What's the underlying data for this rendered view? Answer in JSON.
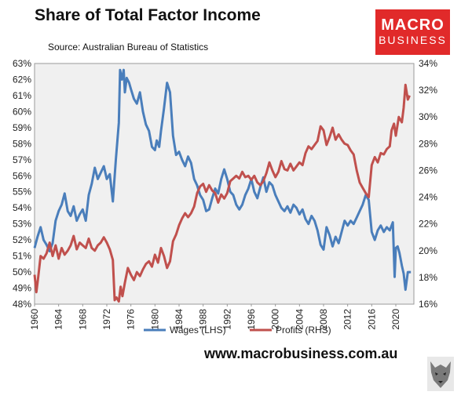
{
  "header": {
    "title": "Share of Total Factor Income",
    "source": "Source: Australian Bureau of Statistics"
  },
  "brand": {
    "logo_line1": "MACRO",
    "logo_line2": "BUSINESS",
    "url": "www.macrobusiness.com.au",
    "accent_color": "#e12a2a"
  },
  "chart_data": {
    "type": "line",
    "grid": false,
    "plot_background": "#f0f0f0",
    "x_range": [
      1960,
      2023
    ],
    "x_ticks": [
      "1960",
      "1964",
      "1968",
      "1972",
      "1976",
      "1980",
      "1984",
      "1988",
      "1992",
      "1996",
      "2000",
      "2004",
      "2008",
      "2012",
      "2016",
      "2020"
    ],
    "y_left": {
      "range": [
        48,
        63
      ],
      "ticks": [
        "48%",
        "49%",
        "50%",
        "51%",
        "52%",
        "53%",
        "54%",
        "55%",
        "56%",
        "57%",
        "58%",
        "59%",
        "60%",
        "61%",
        "62%",
        "63%"
      ]
    },
    "y_right": {
      "range": [
        16,
        34
      ],
      "ticks": [
        "16%",
        "18%",
        "20%",
        "22%",
        "24%",
        "26%",
        "28%",
        "30%",
        "32%",
        "34%"
      ]
    },
    "legend_position": "bottom",
    "series": [
      {
        "name": "Wages (LHS)",
        "axis": "left",
        "color": "#4a7ebb",
        "points": [
          [
            1960.0,
            51.5
          ],
          [
            1960.5,
            52.2
          ],
          [
            1961.0,
            52.8
          ],
          [
            1961.5,
            52.0
          ],
          [
            1962.0,
            51.7
          ],
          [
            1962.5,
            51.3
          ],
          [
            1963.0,
            51.8
          ],
          [
            1963.5,
            53.2
          ],
          [
            1964.0,
            53.8
          ],
          [
            1964.5,
            54.2
          ],
          [
            1965.0,
            54.9
          ],
          [
            1965.5,
            53.8
          ],
          [
            1966.0,
            53.5
          ],
          [
            1966.5,
            54.1
          ],
          [
            1967.0,
            53.2
          ],
          [
            1967.5,
            53.6
          ],
          [
            1968.0,
            53.9
          ],
          [
            1968.5,
            53.2
          ],
          [
            1969.0,
            54.8
          ],
          [
            1969.5,
            55.5
          ],
          [
            1970.0,
            56.5
          ],
          [
            1970.5,
            55.8
          ],
          [
            1971.0,
            56.2
          ],
          [
            1971.5,
            56.6
          ],
          [
            1972.0,
            55.8
          ],
          [
            1972.5,
            56.1
          ],
          [
            1973.0,
            54.4
          ],
          [
            1973.5,
            57.0
          ],
          [
            1974.0,
            59.3
          ],
          [
            1974.2,
            62.6
          ],
          [
            1974.5,
            62.0
          ],
          [
            1974.8,
            62.6
          ],
          [
            1975.0,
            61.2
          ],
          [
            1975.3,
            62.1
          ],
          [
            1975.7,
            61.8
          ],
          [
            1976.0,
            61.4
          ],
          [
            1976.5,
            60.8
          ],
          [
            1977.0,
            60.5
          ],
          [
            1977.5,
            61.2
          ],
          [
            1978.0,
            60.0
          ],
          [
            1978.5,
            59.2
          ],
          [
            1979.0,
            58.8
          ],
          [
            1979.5,
            57.8
          ],
          [
            1980.0,
            57.6
          ],
          [
            1980.3,
            58.2
          ],
          [
            1980.7,
            57.8
          ],
          [
            1981.0,
            58.8
          ],
          [
            1981.5,
            60.2
          ],
          [
            1982.0,
            61.8
          ],
          [
            1982.5,
            61.2
          ],
          [
            1983.0,
            58.5
          ],
          [
            1983.5,
            57.3
          ],
          [
            1984.0,
            57.5
          ],
          [
            1984.5,
            57.0
          ],
          [
            1985.0,
            56.6
          ],
          [
            1985.5,
            57.2
          ],
          [
            1986.0,
            56.8
          ],
          [
            1986.5,
            55.8
          ],
          [
            1987.0,
            55.4
          ],
          [
            1987.5,
            54.8
          ],
          [
            1988.0,
            54.5
          ],
          [
            1988.5,
            53.8
          ],
          [
            1989.0,
            53.9
          ],
          [
            1989.5,
            54.6
          ],
          [
            1990.0,
            55.2
          ],
          [
            1990.5,
            54.9
          ],
          [
            1991.0,
            55.8
          ],
          [
            1991.5,
            56.4
          ],
          [
            1992.0,
            55.8
          ],
          [
            1992.5,
            55.0
          ],
          [
            1993.0,
            54.8
          ],
          [
            1993.5,
            54.2
          ],
          [
            1994.0,
            53.9
          ],
          [
            1994.5,
            54.2
          ],
          [
            1995.0,
            54.8
          ],
          [
            1995.5,
            55.2
          ],
          [
            1996.0,
            55.8
          ],
          [
            1996.5,
            55.0
          ],
          [
            1997.0,
            54.6
          ],
          [
            1997.5,
            55.3
          ],
          [
            1998.0,
            55.9
          ],
          [
            1998.5,
            55.0
          ],
          [
            1999.0,
            55.6
          ],
          [
            1999.5,
            55.4
          ],
          [
            2000.0,
            54.8
          ],
          [
            2000.5,
            54.4
          ],
          [
            2001.0,
            54.0
          ],
          [
            2001.5,
            53.8
          ],
          [
            2002.0,
            54.1
          ],
          [
            2002.5,
            53.7
          ],
          [
            2003.0,
            54.2
          ],
          [
            2003.5,
            54.0
          ],
          [
            2004.0,
            53.6
          ],
          [
            2004.5,
            53.9
          ],
          [
            2005.0,
            53.3
          ],
          [
            2005.5,
            53.0
          ],
          [
            2006.0,
            53.5
          ],
          [
            2006.5,
            53.2
          ],
          [
            2007.0,
            52.6
          ],
          [
            2007.5,
            51.7
          ],
          [
            2008.0,
            51.4
          ],
          [
            2008.5,
            52.8
          ],
          [
            2009.0,
            52.3
          ],
          [
            2009.5,
            51.6
          ],
          [
            2010.0,
            52.2
          ],
          [
            2010.5,
            51.8
          ],
          [
            2011.0,
            52.5
          ],
          [
            2011.5,
            53.2
          ],
          [
            2012.0,
            52.9
          ],
          [
            2012.5,
            53.2
          ],
          [
            2013.0,
            53.0
          ],
          [
            2013.5,
            53.4
          ],
          [
            2014.0,
            53.8
          ],
          [
            2014.5,
            54.2
          ],
          [
            2015.0,
            54.8
          ],
          [
            2015.5,
            54.5
          ],
          [
            2016.0,
            52.5
          ],
          [
            2016.5,
            52.0
          ],
          [
            2017.0,
            52.6
          ],
          [
            2017.5,
            52.9
          ],
          [
            2018.0,
            52.5
          ],
          [
            2018.5,
            52.8
          ],
          [
            2019.0,
            52.6
          ],
          [
            2019.5,
            53.1
          ],
          [
            2019.8,
            49.7
          ],
          [
            2020.0,
            51.5
          ],
          [
            2020.3,
            51.6
          ],
          [
            2020.6,
            51.2
          ],
          [
            2021.0,
            50.4
          ],
          [
            2021.3,
            49.9
          ],
          [
            2021.6,
            48.9
          ],
          [
            2022.0,
            50.0
          ],
          [
            2022.5,
            50.0
          ]
        ]
      },
      {
        "name": "Profits (RHS)",
        "axis": "right",
        "color": "#c0504d",
        "points": [
          [
            1960.0,
            18.2
          ],
          [
            1960.3,
            16.9
          ],
          [
            1960.6,
            18.0
          ],
          [
            1961.0,
            19.6
          ],
          [
            1961.5,
            19.4
          ],
          [
            1962.0,
            19.8
          ],
          [
            1962.5,
            20.6
          ],
          [
            1963.0,
            19.6
          ],
          [
            1963.5,
            20.4
          ],
          [
            1964.0,
            19.4
          ],
          [
            1964.5,
            20.2
          ],
          [
            1965.0,
            19.7
          ],
          [
            1965.5,
            20.0
          ],
          [
            1966.0,
            20.4
          ],
          [
            1966.5,
            21.1
          ],
          [
            1967.0,
            20.1
          ],
          [
            1967.5,
            20.6
          ],
          [
            1968.0,
            20.4
          ],
          [
            1968.5,
            20.2
          ],
          [
            1969.0,
            20.9
          ],
          [
            1969.5,
            20.2
          ],
          [
            1970.0,
            20.0
          ],
          [
            1970.5,
            20.4
          ],
          [
            1971.0,
            20.6
          ],
          [
            1971.5,
            21.0
          ],
          [
            1972.0,
            20.6
          ],
          [
            1972.5,
            20.1
          ],
          [
            1973.0,
            19.3
          ],
          [
            1973.3,
            16.3
          ],
          [
            1973.6,
            16.5
          ],
          [
            1974.0,
            16.2
          ],
          [
            1974.3,
            17.3
          ],
          [
            1974.6,
            16.6
          ],
          [
            1975.0,
            17.6
          ],
          [
            1975.5,
            18.7
          ],
          [
            1976.0,
            18.2
          ],
          [
            1976.5,
            17.8
          ],
          [
            1977.0,
            18.4
          ],
          [
            1977.5,
            18.1
          ],
          [
            1978.0,
            18.6
          ],
          [
            1978.5,
            19.0
          ],
          [
            1979.0,
            19.2
          ],
          [
            1979.5,
            18.8
          ],
          [
            1980.0,
            19.7
          ],
          [
            1980.5,
            19.1
          ],
          [
            1981.0,
            20.2
          ],
          [
            1981.5,
            19.6
          ],
          [
            1982.0,
            18.7
          ],
          [
            1982.5,
            19.2
          ],
          [
            1983.0,
            20.7
          ],
          [
            1983.5,
            21.2
          ],
          [
            1984.0,
            21.9
          ],
          [
            1984.5,
            22.4
          ],
          [
            1985.0,
            22.8
          ],
          [
            1985.5,
            22.5
          ],
          [
            1986.0,
            22.8
          ],
          [
            1986.5,
            23.3
          ],
          [
            1987.0,
            24.3
          ],
          [
            1987.5,
            24.8
          ],
          [
            1988.0,
            25.0
          ],
          [
            1988.5,
            24.4
          ],
          [
            1989.0,
            24.9
          ],
          [
            1989.5,
            24.5
          ],
          [
            1990.0,
            24.3
          ],
          [
            1990.5,
            23.6
          ],
          [
            1991.0,
            24.2
          ],
          [
            1991.5,
            23.9
          ],
          [
            1992.0,
            24.3
          ],
          [
            1992.5,
            25.2
          ],
          [
            1993.0,
            25.4
          ],
          [
            1993.5,
            25.6
          ],
          [
            1994.0,
            25.4
          ],
          [
            1994.5,
            25.9
          ],
          [
            1995.0,
            25.5
          ],
          [
            1995.5,
            25.6
          ],
          [
            1996.0,
            25.3
          ],
          [
            1996.5,
            25.6
          ],
          [
            1997.0,
            25.1
          ],
          [
            1997.5,
            24.9
          ],
          [
            1998.0,
            25.2
          ],
          [
            1998.5,
            25.8
          ],
          [
            1999.0,
            26.6
          ],
          [
            1999.5,
            26.0
          ],
          [
            2000.0,
            25.5
          ],
          [
            2000.5,
            25.9
          ],
          [
            2001.0,
            26.7
          ],
          [
            2001.5,
            26.1
          ],
          [
            2002.0,
            26.0
          ],
          [
            2002.5,
            26.5
          ],
          [
            2003.0,
            26.0
          ],
          [
            2003.5,
            26.3
          ],
          [
            2004.0,
            26.6
          ],
          [
            2004.5,
            26.4
          ],
          [
            2005.0,
            27.3
          ],
          [
            2005.5,
            27.8
          ],
          [
            2006.0,
            27.6
          ],
          [
            2006.5,
            27.9
          ],
          [
            2007.0,
            28.2
          ],
          [
            2007.5,
            29.3
          ],
          [
            2008.0,
            29.0
          ],
          [
            2008.5,
            27.9
          ],
          [
            2009.0,
            28.5
          ],
          [
            2009.5,
            29.2
          ],
          [
            2010.0,
            28.3
          ],
          [
            2010.5,
            28.7
          ],
          [
            2011.0,
            28.3
          ],
          [
            2011.5,
            28.0
          ],
          [
            2012.0,
            27.9
          ],
          [
            2012.5,
            27.5
          ],
          [
            2013.0,
            27.2
          ],
          [
            2013.5,
            26.0
          ],
          [
            2014.0,
            25.1
          ],
          [
            2014.5,
            24.7
          ],
          [
            2015.0,
            24.3
          ],
          [
            2015.5,
            24.0
          ],
          [
            2016.0,
            26.4
          ],
          [
            2016.5,
            27.0
          ],
          [
            2017.0,
            26.6
          ],
          [
            2017.5,
            27.3
          ],
          [
            2018.0,
            27.2
          ],
          [
            2018.5,
            27.6
          ],
          [
            2019.0,
            27.8
          ],
          [
            2019.3,
            29.0
          ],
          [
            2019.7,
            29.5
          ],
          [
            2020.0,
            28.6
          ],
          [
            2020.5,
            30.0
          ],
          [
            2021.0,
            29.6
          ],
          [
            2021.3,
            30.7
          ],
          [
            2021.6,
            32.4
          ],
          [
            2022.0,
            31.3
          ],
          [
            2022.3,
            31.6
          ]
        ]
      }
    ]
  }
}
